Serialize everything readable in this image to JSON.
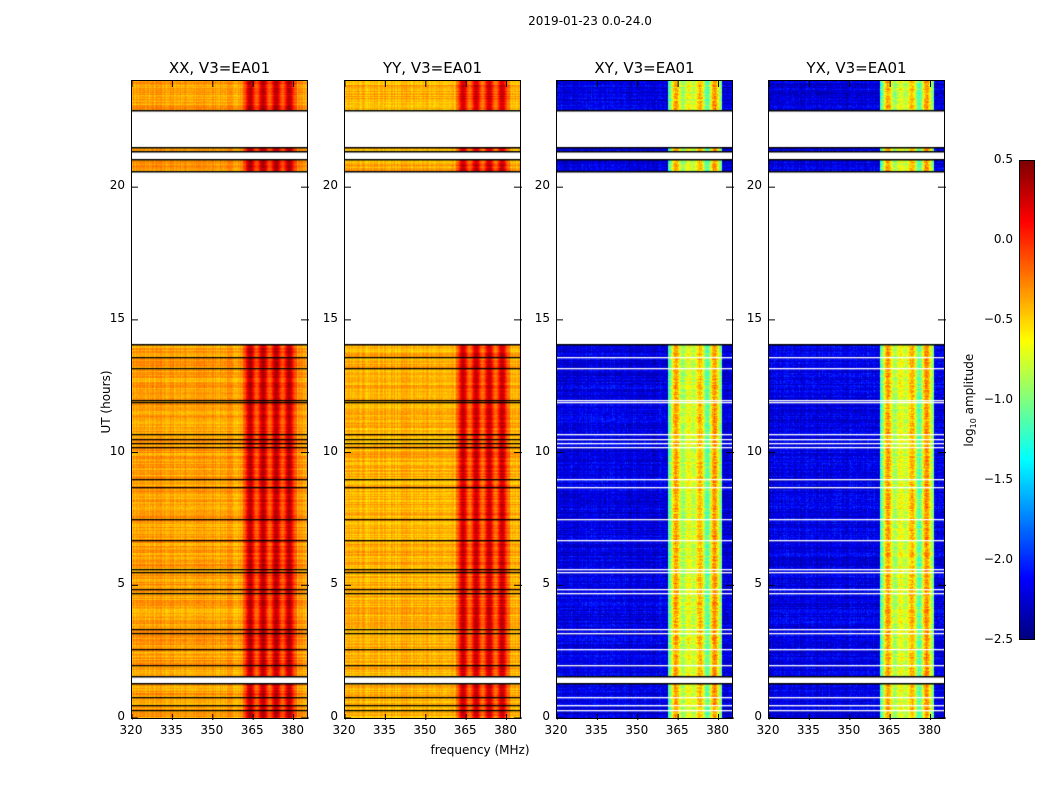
{
  "chart_data": {
    "type": "heatmap",
    "title": "2019-01-23 0.0-24.0",
    "xlabel": "frequency (MHz)",
    "ylabel": "UT (hours)",
    "xlim": [
      320,
      385
    ],
    "ylim": [
      0,
      24
    ],
    "xticks": [
      320,
      335,
      350,
      365,
      380
    ],
    "yticks": [
      0,
      5,
      10,
      15,
      20
    ],
    "panels": [
      {
        "title": "XX, V3=EA01",
        "base": -0.35,
        "band_level": 0.1
      },
      {
        "title": "YY, V3=EA01",
        "base": -0.4,
        "band_level": 0.05
      },
      {
        "title": "XY, V3=EA01",
        "base": -2.2,
        "band_level": -0.7
      },
      {
        "title": "YX, V3=EA01",
        "base": -2.2,
        "band_level": -0.7
      }
    ],
    "bright_band_mhz": [
      361,
      381
    ],
    "data_time_blocks": [
      [
        0,
        1.3
      ],
      [
        1.57,
        14.1
      ],
      [
        20.6,
        21.05
      ],
      [
        21.35,
        21.5
      ],
      [
        22.9,
        24
      ]
    ],
    "flagged_lines_hours": [
      0.3,
      0.5,
      0.8,
      2.0,
      2.6,
      3.2,
      3.35,
      4.7,
      4.85,
      5.5,
      5.6,
      6.7,
      7.5,
      8.7,
      9.0,
      10.2,
      10.35,
      10.5,
      10.7,
      11.9,
      12.0,
      13.2,
      13.6
    ],
    "colorbar": {
      "label": "log10 amplitude",
      "range": [
        -2.5,
        0.5
      ],
      "ticks": [
        "0.5",
        "0.0",
        "−0.5",
        "−1.0",
        "−1.5",
        "−2.0",
        "−2.5"
      ],
      "colormap": "jet"
    }
  }
}
